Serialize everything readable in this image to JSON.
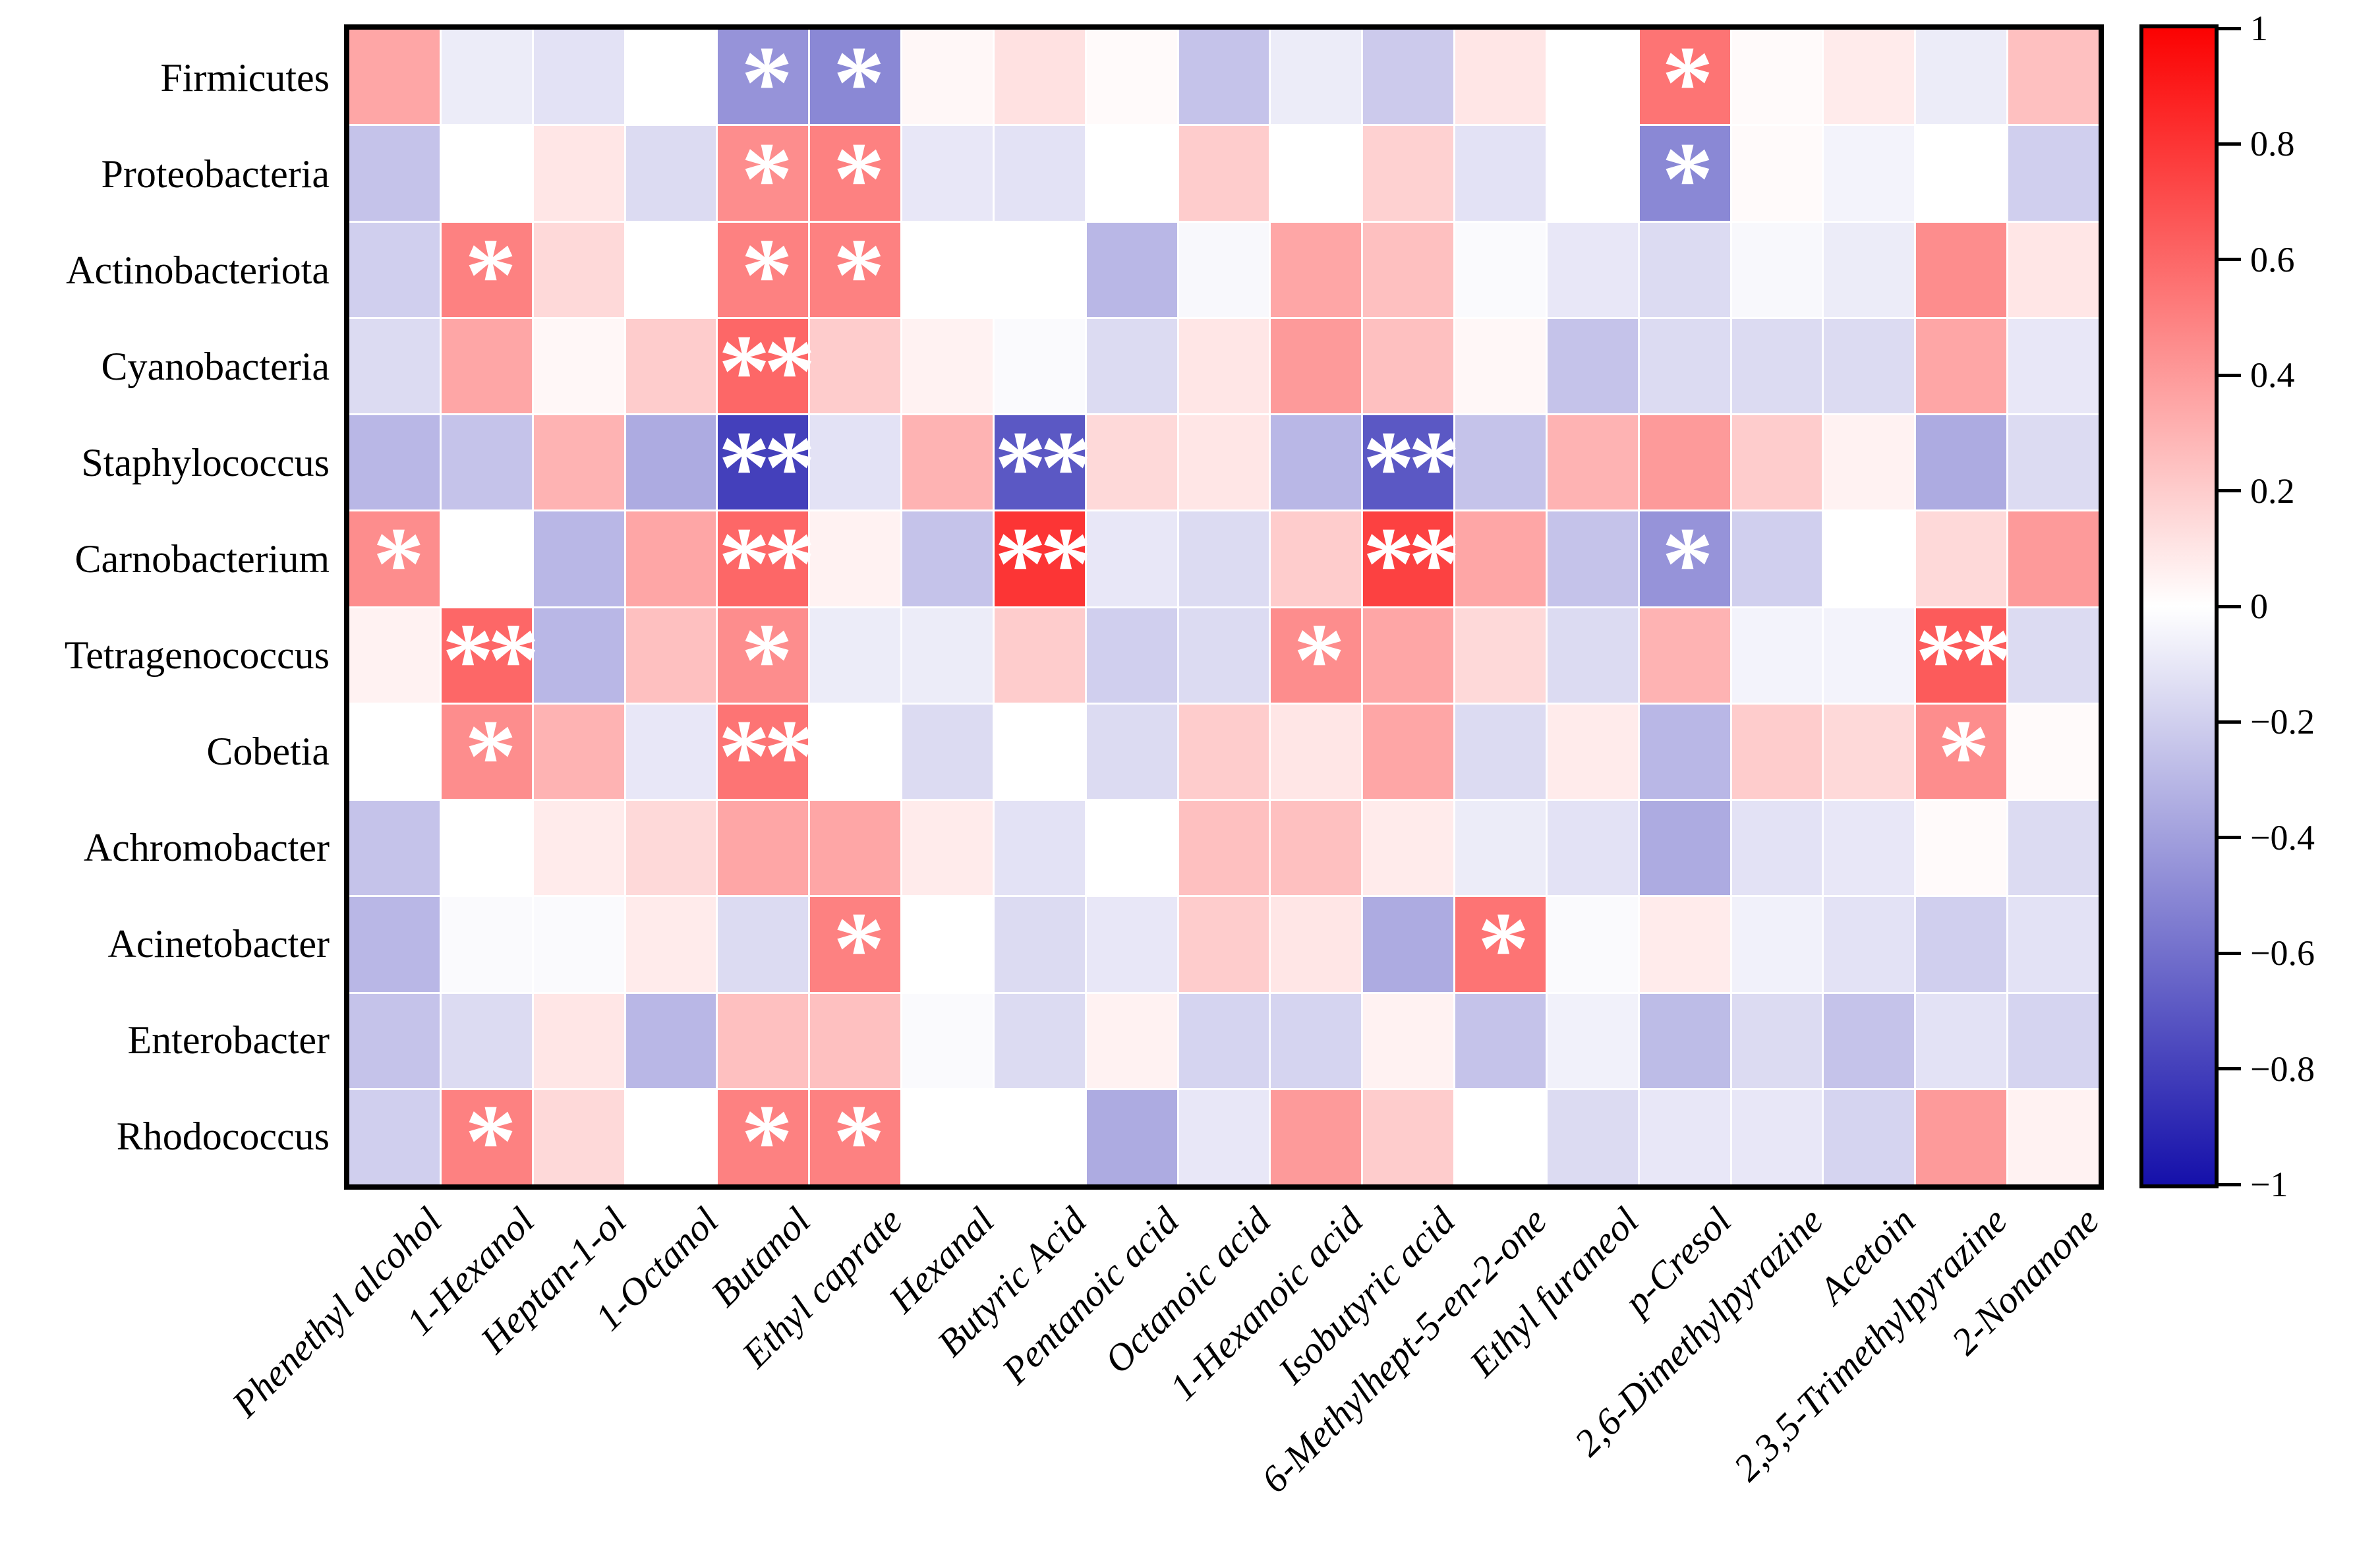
{
  "figure": {
    "kind": "correlation heatmap",
    "background": "#ffffff",
    "title": ""
  },
  "chart_data": {
    "type": "heatmap",
    "title": "",
    "xlabel": "",
    "ylabel": "",
    "grid": false,
    "rows": [
      "Firmicutes",
      "Proteobacteria",
      "Actinobacteriota",
      "Cyanobacteria",
      "Staphylococcus",
      "Carnobacterium",
      "Tetragenococcus",
      "Cobetia",
      "Achromobacter",
      "Acinetobacter",
      "Enterobacter",
      "Rhodococcus"
    ],
    "columns": [
      "Phenethyl alcohol",
      "1-Hexanol",
      "Heptan-1-ol",
      "1-Octanol",
      "Butanol",
      "Ethyl caprate",
      "Hexanal",
      "Butyric Acid",
      "Pentanoic acid",
      "Octanoic acid",
      "1-Hexanoic acid",
      "Isobutyric acid",
      "6-Methylhept-5-en-2-one",
      "Ethyl furaneol",
      "p-Cresol",
      "2,6-Dimethylpyrazine",
      "Acetoin",
      "2,3,5-Trimethylpyrazine",
      "2-Nonanone"
    ],
    "values": [
      [
        0.35,
        -0.08,
        -0.12,
        0,
        -0.45,
        -0.5,
        0.03,
        0.12,
        0.02,
        -0.25,
        -0.08,
        -0.22,
        0.1,
        0,
        0.55,
        0.02,
        0.08,
        -0.08,
        0.25
      ],
      [
        -0.25,
        0,
        0.1,
        -0.15,
        0.45,
        0.5,
        -0.1,
        -0.12,
        0,
        0.2,
        0,
        0.18,
        -0.12,
        0,
        -0.5,
        0.02,
        -0.05,
        0,
        -0.2
      ],
      [
        -0.2,
        0.5,
        0.15,
        0,
        0.5,
        0.5,
        0,
        0,
        -0.3,
        -0.03,
        0.35,
        0.25,
        -0.02,
        -0.1,
        -0.15,
        -0.03,
        -0.08,
        0.45,
        0.1
      ],
      [
        -0.15,
        0.35,
        0.03,
        0.2,
        0.6,
        0.2,
        0.05,
        -0.02,
        -0.15,
        0.1,
        0.4,
        0.25,
        0.03,
        -0.25,
        -0.15,
        -0.15,
        -0.15,
        0.35,
        -0.1
      ],
      [
        -0.3,
        -0.25,
        0.3,
        -0.35,
        -0.8,
        -0.12,
        0.3,
        -0.7,
        0.15,
        0.1,
        -0.3,
        -0.7,
        -0.25,
        0.3,
        0.4,
        0.2,
        0.05,
        -0.35,
        -0.15
      ],
      [
        0.45,
        0,
        -0.3,
        0.35,
        0.6,
        0.05,
        -0.25,
        0.8,
        -0.1,
        -0.15,
        0.2,
        0.75,
        0.35,
        -0.25,
        -0.45,
        -0.2,
        0,
        0.15,
        0.4
      ],
      [
        0.05,
        0.6,
        -0.3,
        0.25,
        0.45,
        -0.08,
        -0.08,
        0.2,
        -0.2,
        -0.15,
        0.45,
        0.35,
        0.15,
        -0.15,
        0.3,
        -0.05,
        -0.05,
        0.65,
        -0.15
      ],
      [
        0,
        0.45,
        0.3,
        -0.1,
        0.55,
        0,
        -0.15,
        0,
        -0.15,
        0.2,
        0.1,
        0.35,
        -0.15,
        0.08,
        -0.3,
        0.2,
        0.15,
        0.45,
        0.02
      ],
      [
        -0.25,
        0,
        0.08,
        0.15,
        0.35,
        0.35,
        0.08,
        -0.12,
        0,
        0.25,
        0.25,
        0.08,
        -0.08,
        -0.12,
        -0.35,
        -0.12,
        -0.1,
        0.02,
        -0.15
      ],
      [
        -0.3,
        -0.02,
        -0.02,
        0.08,
        -0.15,
        0.5,
        0,
        -0.15,
        -0.1,
        0.2,
        0.1,
        -0.35,
        0.55,
        -0.02,
        0.08,
        -0.06,
        -0.12,
        -0.2,
        -0.12
      ],
      [
        -0.25,
        -0.15,
        0.1,
        -0.3,
        0.25,
        0.25,
        -0.02,
        -0.15,
        0.05,
        -0.18,
        -0.18,
        0.05,
        -0.25,
        -0.06,
        -0.28,
        -0.15,
        -0.25,
        -0.12,
        -0.18
      ],
      [
        -0.2,
        0.5,
        0.15,
        0,
        0.5,
        0.5,
        0,
        0,
        -0.35,
        -0.1,
        0.4,
        0.2,
        0,
        -0.15,
        -0.1,
        -0.1,
        -0.18,
        0.4,
        0.05
      ]
    ],
    "significance": [
      [
        "",
        "",
        "",
        "",
        "*",
        "*",
        "",
        "",
        "",
        "",
        "",
        "",
        "",
        "",
        "*",
        "",
        "",
        "",
        ""
      ],
      [
        "",
        "",
        "",
        "",
        "*",
        "*",
        "",
        "",
        "",
        "",
        "",
        "",
        "",
        "",
        "*",
        "",
        "",
        "",
        ""
      ],
      [
        "",
        "*",
        "",
        "",
        "*",
        "*",
        "",
        "",
        "",
        "",
        "",
        "",
        "",
        "",
        "",
        "",
        "",
        "",
        ""
      ],
      [
        "",
        "",
        "",
        "",
        "**",
        "",
        "",
        "",
        "",
        "",
        "",
        "",
        "",
        "",
        "",
        "",
        "",
        "",
        ""
      ],
      [
        "",
        "",
        "",
        "",
        "**",
        "",
        "",
        "**",
        "",
        "",
        "",
        "**",
        "",
        "",
        "",
        "",
        "",
        "",
        ""
      ],
      [
        "*",
        "",
        "",
        "",
        "**",
        "",
        "",
        "**",
        "",
        "",
        "",
        "**",
        "",
        "",
        "*",
        "",
        "",
        "",
        ""
      ],
      [
        "",
        "**",
        "",
        "",
        "*",
        "",
        "",
        "",
        "",
        "",
        "*",
        "",
        "",
        "",
        "",
        "",
        "",
        "**",
        ""
      ],
      [
        "",
        "*",
        "",
        "",
        "**",
        "",
        "",
        "",
        "",
        "",
        "",
        "",
        "",
        "",
        "",
        "",
        "",
        "*",
        ""
      ],
      [
        "",
        "",
        "",
        "",
        "",
        "",
        "",
        "",
        "",
        "",
        "",
        "",
        "",
        "",
        "",
        "",
        "",
        "",
        ""
      ],
      [
        "",
        "",
        "",
        "",
        "",
        "*",
        "",
        "",
        "",
        "",
        "",
        "",
        "*",
        "",
        "",
        "",
        "",
        "",
        ""
      ],
      [
        "",
        "",
        "",
        "",
        "",
        "",
        "",
        "",
        "",
        "",
        "",
        "",
        "",
        "",
        "",
        "",
        "",
        "",
        ""
      ],
      [
        "",
        "*",
        "",
        "",
        "*",
        "*",
        "",
        "",
        "",
        "",
        "",
        "",
        "",
        "",
        "",
        "",
        "",
        "",
        ""
      ]
    ],
    "legend": {
      "position": "right",
      "min": -1,
      "max": 1,
      "tick_values": [
        1,
        0.8,
        0.6,
        0.4,
        0.2,
        0,
        -0.2,
        -0.4,
        -0.6,
        -0.8,
        -1
      ],
      "tick_labels": [
        "1",
        "0.8",
        "0.6",
        "0.4",
        "0.2",
        "0",
        "−0.2",
        "−0.4",
        "−0.6",
        "−0.8",
        "−1"
      ]
    },
    "colors": {
      "max_color": "rgb(251,2,2)",
      "mid_color": "#ffffff",
      "min_color": "rgb(21,16,170)",
      "annotation_color": "#ffffff",
      "frame_color": "#000000",
      "label_color": "#000000"
    }
  }
}
